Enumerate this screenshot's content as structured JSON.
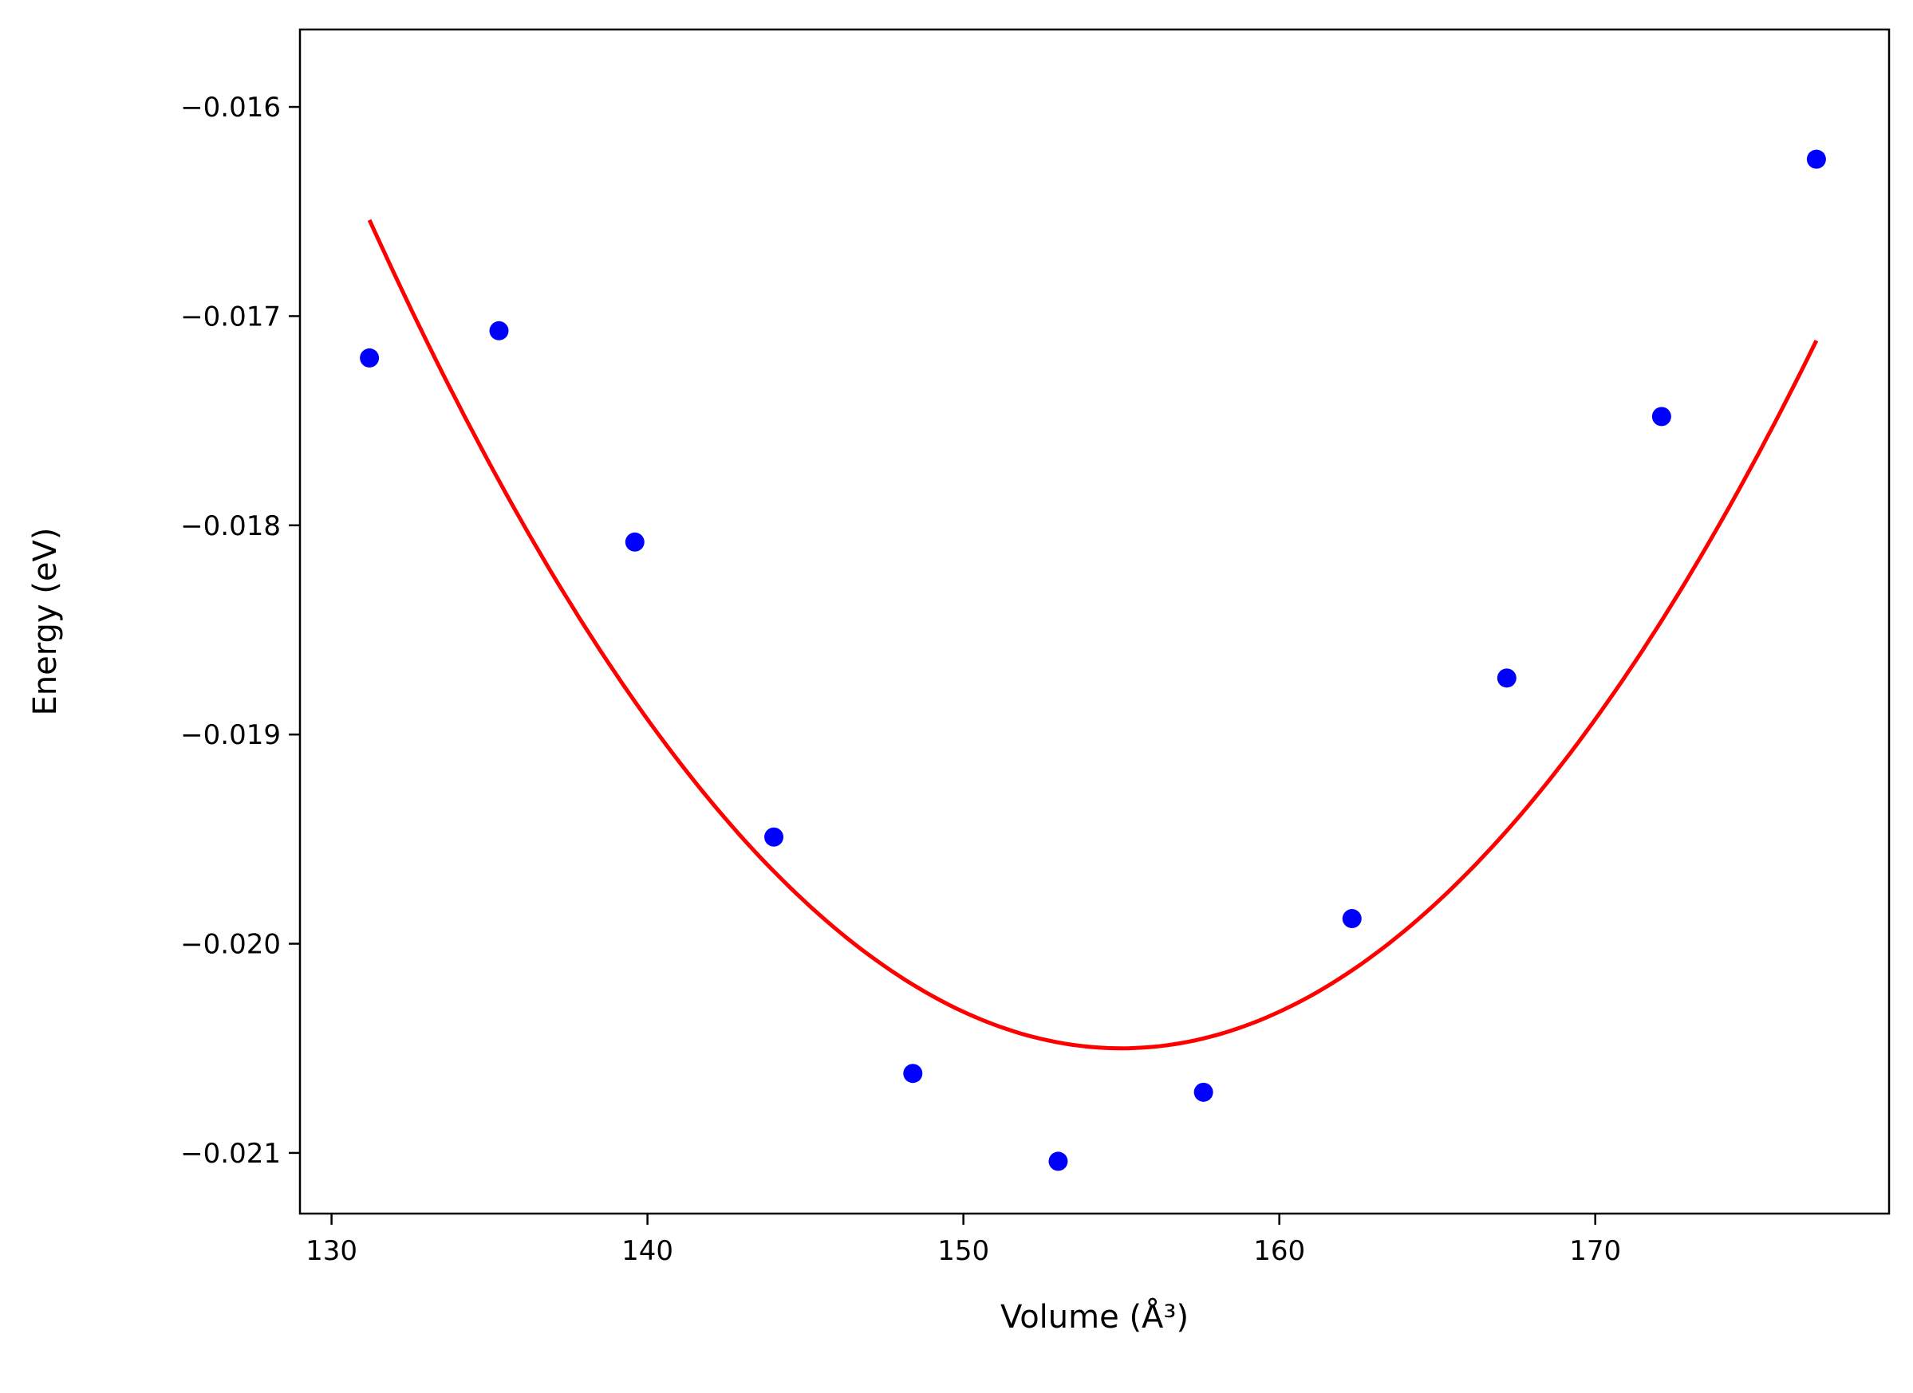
{
  "chart_data": {
    "type": "scatter",
    "xlabel": "Volume (Å³)",
    "ylabel": "Energy (eV)",
    "xlim": [
      129,
      179.3
    ],
    "ylim": [
      -0.02129,
      -0.01563
    ],
    "x_ticks": [
      130,
      140,
      150,
      160,
      170
    ],
    "y_ticks": [
      -0.016,
      -0.017,
      -0.018,
      -0.019,
      -0.02,
      -0.021
    ],
    "x_tick_labels": [
      "130",
      "140",
      "150",
      "160",
      "170"
    ],
    "y_tick_labels": [
      "−0.016",
      "−0.017",
      "−0.018",
      "−0.019",
      "−0.020",
      "−0.021"
    ],
    "grid": false,
    "series": [
      {
        "type": "scatter",
        "color": "#0000ff",
        "points": [
          {
            "x": 131.2,
            "y": -0.0172
          },
          {
            "x": 135.3,
            "y": -0.01707
          },
          {
            "x": 139.6,
            "y": -0.01808
          },
          {
            "x": 144.0,
            "y": -0.01949
          },
          {
            "x": 148.4,
            "y": -0.02062
          },
          {
            "x": 153.0,
            "y": -0.02104
          },
          {
            "x": 157.6,
            "y": -0.02071
          },
          {
            "x": 162.3,
            "y": -0.01988
          },
          {
            "x": 167.2,
            "y": -0.01873
          },
          {
            "x": 172.1,
            "y": -0.01748
          },
          {
            "x": 177.0,
            "y": -0.01625
          }
        ]
      },
      {
        "type": "line",
        "color": "#ff0000",
        "fit": {
          "kind": "quadratic",
          "vertex_x": 155.0,
          "vertex_y": -0.0205,
          "a": 6.99e-06
        },
        "x_range": [
          131.2,
          177.0
        ]
      }
    ]
  }
}
